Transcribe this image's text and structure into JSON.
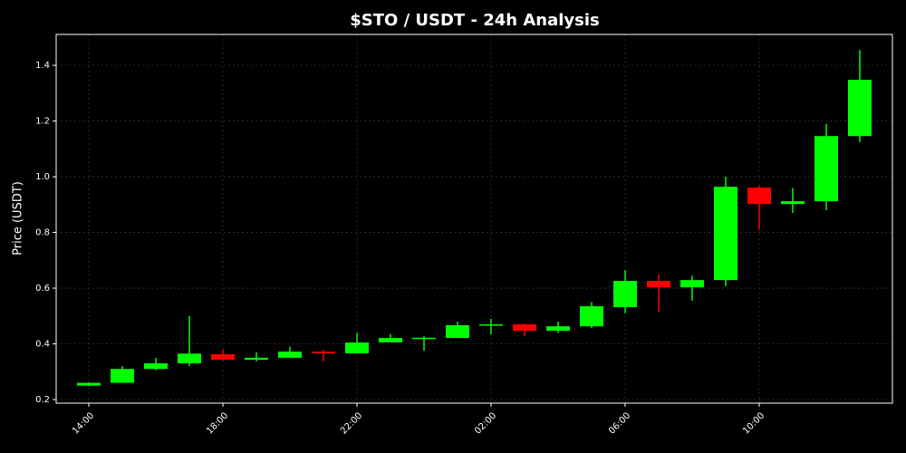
{
  "chart_data": {
    "type": "candlestick",
    "title": "$STO / USDT - 24h Analysis",
    "y_label": "Price (USDT)",
    "categories": [
      "14:00",
      null,
      null,
      null,
      "18:00",
      null,
      null,
      null,
      "22:00",
      null,
      null,
      null,
      "02:00",
      null,
      null,
      null,
      "06:00",
      null,
      null,
      null,
      "10:00",
      null,
      null,
      null
    ],
    "open": [
      0.25,
      0.26,
      0.31,
      0.33,
      0.363,
      0.343,
      0.35,
      0.372,
      0.366,
      0.405,
      0.42,
      0.421,
      0.467,
      0.47,
      0.447,
      0.463,
      0.532,
      0.626,
      0.603,
      0.629,
      0.961,
      0.902,
      0.912,
      1.146
    ],
    "high": [
      0.262,
      0.32,
      0.35,
      0.5,
      0.38,
      0.37,
      0.39,
      0.378,
      0.44,
      0.435,
      0.428,
      0.48,
      0.49,
      0.473,
      0.48,
      0.55,
      0.665,
      0.65,
      0.645,
      1.0,
      0.967,
      0.96,
      1.19,
      1.455
    ],
    "low": [
      0.248,
      0.26,
      0.305,
      0.32,
      0.34,
      0.337,
      0.35,
      0.337,
      0.366,
      0.405,
      0.375,
      0.421,
      0.434,
      0.428,
      0.44,
      0.457,
      0.51,
      0.515,
      0.555,
      0.607,
      0.811,
      0.87,
      0.88,
      1.124
    ],
    "close": [
      0.26,
      0.31,
      0.33,
      0.365,
      0.343,
      0.35,
      0.372,
      0.366,
      0.405,
      0.421,
      0.422,
      0.467,
      0.47,
      0.447,
      0.463,
      0.535,
      0.626,
      0.603,
      0.629,
      0.964,
      0.902,
      0.912,
      1.146,
      1.348
    ],
    "up_color": "#00ff00",
    "down_color": "#ff0000",
    "ylim": [
      0.187,
      1.511
    ],
    "yticks": [
      0.2,
      0.4,
      0.6,
      0.8,
      {
        "value": 1,
        "label": "1.0"
      },
      1.2,
      1.4
    ],
    "grid": true
  }
}
